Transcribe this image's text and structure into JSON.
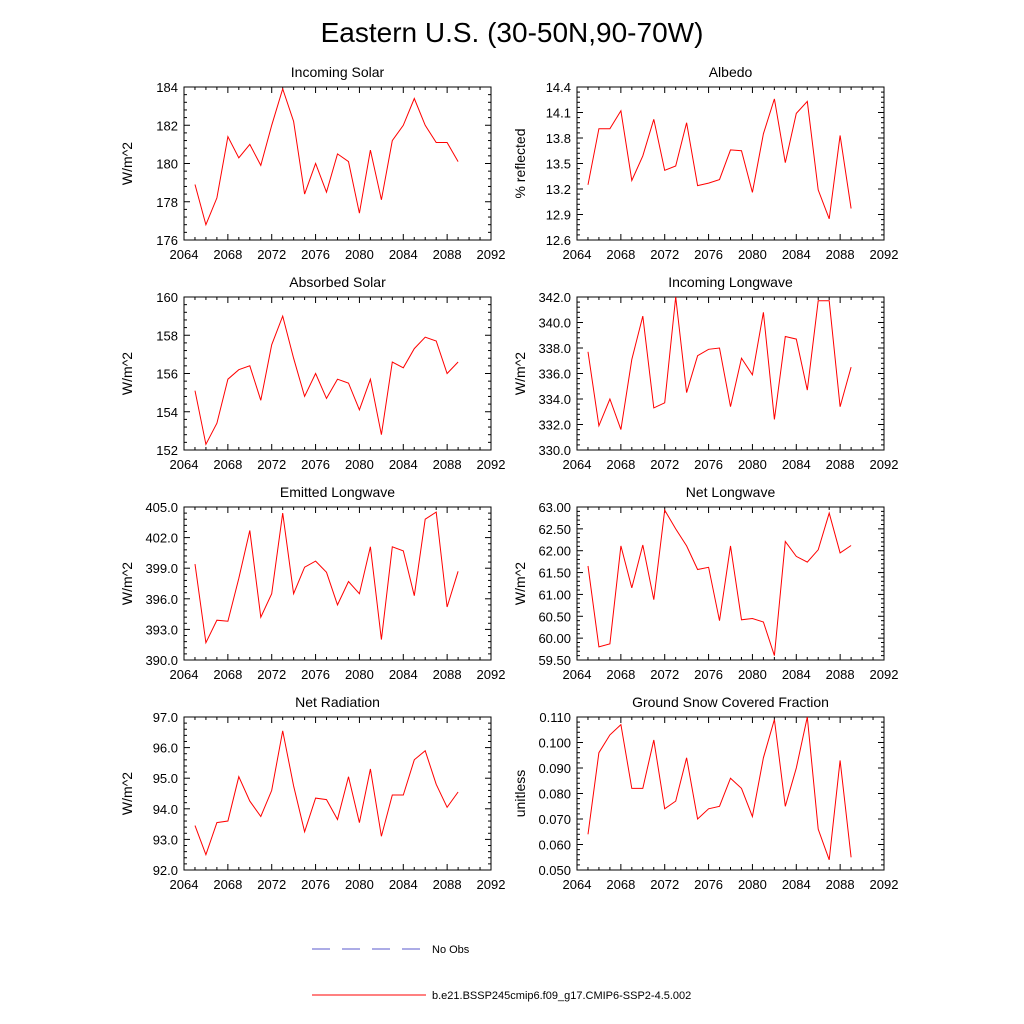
{
  "title": "Eastern U.S. (30-50N,90-70W)",
  "colors": {
    "model_line": "#ff0000",
    "obs_line": "#5a5acd",
    "axis": "#000000"
  },
  "legend": {
    "obs_label": "No Obs",
    "model_label": "b.e21.BSSP245cmip6.f09_g17.CMIP6-SSP2-4.5.002"
  },
  "chart_data": [
    {
      "type": "line",
      "title": "Incoming Solar",
      "xlabel": "",
      "ylabel": "W/m^2",
      "xlim": [
        2064,
        2092
      ],
      "ylim": [
        176,
        184
      ],
      "xticks": [
        "2064",
        "2068",
        "2072",
        "2076",
        "2080",
        "2084",
        "2088",
        "2092"
      ],
      "yticks": [
        "176",
        "178",
        "180",
        "182",
        "184"
      ],
      "x": [
        2065,
        2066,
        2067,
        2068,
        2069,
        2070,
        2071,
        2072,
        2073,
        2074,
        2075,
        2076,
        2077,
        2078,
        2079,
        2080,
        2081,
        2082,
        2083,
        2084,
        2085,
        2086,
        2087,
        2088,
        2089
      ],
      "values": [
        178.9,
        176.8,
        178.2,
        181.4,
        180.3,
        181.0,
        179.9,
        182.0,
        183.9,
        182.2,
        178.4,
        180.0,
        178.5,
        180.5,
        180.1,
        177.4,
        180.7,
        178.1,
        181.2,
        182.0,
        183.4,
        182.0,
        181.1,
        181.1,
        180.1
      ]
    },
    {
      "type": "line",
      "title": "Albedo",
      "xlabel": "",
      "ylabel": "% reflected",
      "xlim": [
        2064,
        2092
      ],
      "ylim": [
        12.6,
        14.4
      ],
      "xticks": [
        "2064",
        "2068",
        "2072",
        "2076",
        "2080",
        "2084",
        "2088",
        "2092"
      ],
      "yticks": [
        "12.6",
        "12.9",
        "13.2",
        "13.5",
        "13.8",
        "14.1",
        "14.4"
      ],
      "x": [
        2065,
        2066,
        2067,
        2068,
        2069,
        2070,
        2071,
        2072,
        2073,
        2074,
        2075,
        2076,
        2077,
        2078,
        2079,
        2080,
        2081,
        2082,
        2083,
        2084,
        2085,
        2086,
        2087,
        2088,
        2089
      ],
      "values": [
        13.25,
        13.91,
        13.91,
        14.12,
        13.3,
        13.59,
        14.02,
        13.42,
        13.47,
        13.98,
        13.24,
        13.27,
        13.31,
        13.66,
        13.65,
        13.16,
        13.85,
        14.26,
        13.51,
        14.09,
        14.23,
        13.19,
        12.85,
        13.83,
        12.97
      ]
    },
    {
      "type": "line",
      "title": "Absorbed Solar",
      "xlabel": "",
      "ylabel": "W/m^2",
      "xlim": [
        2064,
        2092
      ],
      "ylim": [
        152,
        160
      ],
      "xticks": [
        "2064",
        "2068",
        "2072",
        "2076",
        "2080",
        "2084",
        "2088",
        "2092"
      ],
      "yticks": [
        "152",
        "154",
        "156",
        "158",
        "160"
      ],
      "x": [
        2065,
        2066,
        2067,
        2068,
        2069,
        2070,
        2071,
        2072,
        2073,
        2074,
        2075,
        2076,
        2077,
        2078,
        2079,
        2080,
        2081,
        2082,
        2083,
        2084,
        2085,
        2086,
        2087,
        2088,
        2089
      ],
      "values": [
        155.1,
        152.3,
        153.4,
        155.7,
        156.2,
        156.4,
        154.6,
        157.5,
        159.0,
        156.8,
        154.8,
        156.0,
        154.7,
        155.7,
        155.5,
        154.1,
        155.7,
        152.8,
        156.6,
        156.3,
        157.3,
        157.9,
        157.7,
        156.0,
        156.6
      ]
    },
    {
      "type": "line",
      "title": "Incoming Longwave",
      "xlabel": "",
      "ylabel": "W/m^2",
      "xlim": [
        2064,
        2092
      ],
      "ylim": [
        330.0,
        342.0
      ],
      "xticks": [
        "2064",
        "2068",
        "2072",
        "2076",
        "2080",
        "2084",
        "2088",
        "2092"
      ],
      "yticks": [
        "330.0",
        "332.0",
        "334.0",
        "336.0",
        "338.0",
        "340.0",
        "342.0"
      ],
      "x": [
        2065,
        2066,
        2067,
        2068,
        2069,
        2070,
        2071,
        2072,
        2073,
        2074,
        2075,
        2076,
        2077,
        2078,
        2079,
        2080,
        2081,
        2082,
        2083,
        2084,
        2085,
        2086,
        2087,
        2088,
        2089
      ],
      "values": [
        337.7,
        331.9,
        334.0,
        331.6,
        337.1,
        340.5,
        333.3,
        333.7,
        342.0,
        334.5,
        337.4,
        337.9,
        338.0,
        333.4,
        337.2,
        335.9,
        340.8,
        332.4,
        338.9,
        338.7,
        334.7,
        341.7,
        341.7,
        333.4,
        336.5
      ]
    },
    {
      "type": "line",
      "title": "Emitted Longwave",
      "xlabel": "",
      "ylabel": "W/m^2",
      "xlim": [
        2064,
        2092
      ],
      "ylim": [
        390.0,
        405.0
      ],
      "xticks": [
        "2064",
        "2068",
        "2072",
        "2076",
        "2080",
        "2084",
        "2088",
        "2092"
      ],
      "yticks": [
        "390.0",
        "393.0",
        "396.0",
        "399.0",
        "402.0",
        "405.0"
      ],
      "x": [
        2065,
        2066,
        2067,
        2068,
        2069,
        2070,
        2071,
        2072,
        2073,
        2074,
        2075,
        2076,
        2077,
        2078,
        2079,
        2080,
        2081,
        2082,
        2083,
        2084,
        2085,
        2086,
        2087,
        2088,
        2089
      ],
      "values": [
        399.4,
        391.7,
        393.9,
        393.8,
        398.0,
        402.7,
        394.2,
        396.5,
        404.4,
        396.5,
        399.1,
        399.7,
        398.6,
        395.4,
        397.7,
        396.5,
        401.1,
        392.0,
        401.1,
        400.7,
        396.3,
        403.8,
        404.5,
        395.2,
        398.7
      ]
    },
    {
      "type": "line",
      "title": "Net Longwave",
      "xlabel": "",
      "ylabel": "W/m^2",
      "xlim": [
        2064,
        2092
      ],
      "ylim": [
        59.5,
        63.0
      ],
      "xticks": [
        "2064",
        "2068",
        "2072",
        "2076",
        "2080",
        "2084",
        "2088",
        "2092"
      ],
      "yticks": [
        "59.50",
        "60.00",
        "60.50",
        "61.00",
        "61.50",
        "62.00",
        "62.50",
        "63.00"
      ],
      "x": [
        2065,
        2066,
        2067,
        2068,
        2069,
        2070,
        2071,
        2072,
        2073,
        2074,
        2075,
        2076,
        2077,
        2078,
        2079,
        2080,
        2081,
        2082,
        2083,
        2084,
        2085,
        2086,
        2087,
        2088,
        2089
      ],
      "values": [
        61.65,
        59.8,
        59.87,
        62.11,
        61.15,
        62.13,
        60.88,
        62.93,
        62.5,
        62.11,
        61.57,
        61.62,
        60.4,
        62.11,
        60.42,
        60.45,
        60.37,
        59.6,
        62.21,
        61.87,
        61.74,
        62.02,
        62.86,
        61.95,
        62.12
      ]
    },
    {
      "type": "line",
      "title": "Net Radiation",
      "xlabel": "",
      "ylabel": "W/m^2",
      "xlim": [
        2064,
        2092
      ],
      "ylim": [
        92.0,
        97.0
      ],
      "xticks": [
        "2064",
        "2068",
        "2072",
        "2076",
        "2080",
        "2084",
        "2088",
        "2092"
      ],
      "yticks": [
        "92.0",
        "93.0",
        "94.0",
        "95.0",
        "96.0",
        "97.0"
      ],
      "x": [
        2065,
        2066,
        2067,
        2068,
        2069,
        2070,
        2071,
        2072,
        2073,
        2074,
        2075,
        2076,
        2077,
        2078,
        2079,
        2080,
        2081,
        2082,
        2083,
        2084,
        2085,
        2086,
        2087,
        2088,
        2089
      ],
      "values": [
        93.45,
        92.5,
        93.55,
        93.6,
        95.05,
        94.25,
        93.75,
        94.6,
        96.55,
        94.75,
        93.25,
        94.35,
        94.3,
        93.65,
        95.05,
        93.55,
        95.3,
        93.1,
        94.45,
        94.45,
        95.6,
        95.9,
        94.8,
        94.05,
        94.55
      ]
    },
    {
      "type": "line",
      "title": "Ground Snow Covered Fraction",
      "xlabel": "",
      "ylabel": "unitless",
      "xlim": [
        2064,
        2092
      ],
      "ylim": [
        0.05,
        0.11
      ],
      "xticks": [
        "2064",
        "2068",
        "2072",
        "2076",
        "2080",
        "2084",
        "2088",
        "2092"
      ],
      "yticks": [
        "0.050",
        "0.060",
        "0.070",
        "0.080",
        "0.090",
        "0.100",
        "0.110"
      ],
      "x": [
        2065,
        2066,
        2067,
        2068,
        2069,
        2070,
        2071,
        2072,
        2073,
        2074,
        2075,
        2076,
        2077,
        2078,
        2079,
        2080,
        2081,
        2082,
        2083,
        2084,
        2085,
        2086,
        2087,
        2088,
        2089
      ],
      "values": [
        0.064,
        0.096,
        0.103,
        0.107,
        0.082,
        0.082,
        0.101,
        0.074,
        0.077,
        0.094,
        0.07,
        0.074,
        0.075,
        0.086,
        0.082,
        0.071,
        0.094,
        0.109,
        0.075,
        0.09,
        0.11,
        0.066,
        0.054,
        0.093,
        0.055
      ]
    }
  ]
}
